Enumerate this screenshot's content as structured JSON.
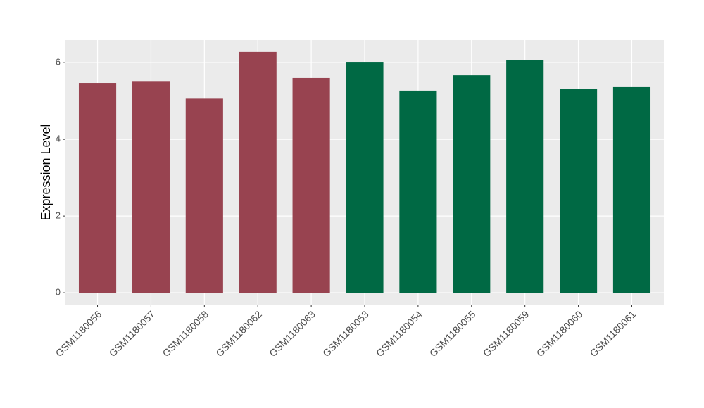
{
  "chart_data": {
    "type": "bar",
    "y_label": "Expression Level",
    "categories": [
      "GSM1180056",
      "GSM1180057",
      "GSM1180058",
      "GSM1180062",
      "GSM1180063",
      "GSM1180053",
      "GSM1180054",
      "GSM1180055",
      "GSM1180059",
      "GSM1180060",
      "GSM1180061"
    ],
    "values": [
      5.47,
      5.52,
      5.06,
      6.28,
      5.6,
      6.02,
      5.27,
      5.67,
      6.07,
      5.32,
      5.38
    ],
    "colors": [
      "#984350",
      "#984350",
      "#984350",
      "#984350",
      "#984350",
      "#006944",
      "#006944",
      "#006944",
      "#006944",
      "#006944",
      "#006944"
    ],
    "ylim": [
      -0.31,
      6.59
    ],
    "yticks": [
      0,
      2,
      4,
      6
    ],
    "grid": true
  }
}
